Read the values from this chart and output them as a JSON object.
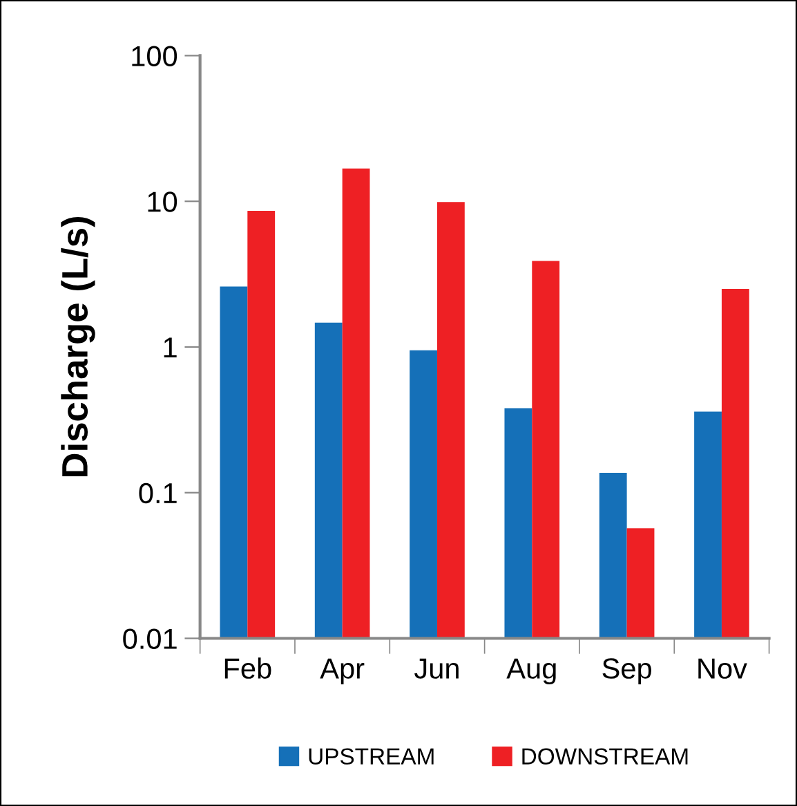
{
  "chart_data": {
    "type": "bar",
    "ylabel": "Discharge (L/s)",
    "log": "y",
    "categories": [
      "Feb",
      "Apr",
      "Jun",
      "Aug",
      "Sep",
      "Nov"
    ],
    "series": [
      {
        "name": "UPSTREAM",
        "color": "#1570b8",
        "values": [
          2.6,
          1.47,
          0.95,
          0.38,
          0.137,
          0.36
        ]
      },
      {
        "name": "DOWNSTREAM",
        "color": "#ee2024",
        "values": [
          8.6,
          16.8,
          9.9,
          3.9,
          0.057,
          2.5
        ]
      }
    ],
    "ylim": [
      0.01,
      100
    ],
    "yticks": [
      {
        "value": 0.01,
        "label": "0.01"
      },
      {
        "value": 0.1,
        "label": "0.1"
      },
      {
        "value": 1,
        "label": "1"
      },
      {
        "value": 10,
        "label": "10"
      },
      {
        "value": 100,
        "label": "100"
      }
    ],
    "grid": false,
    "legend": "bottom"
  }
}
